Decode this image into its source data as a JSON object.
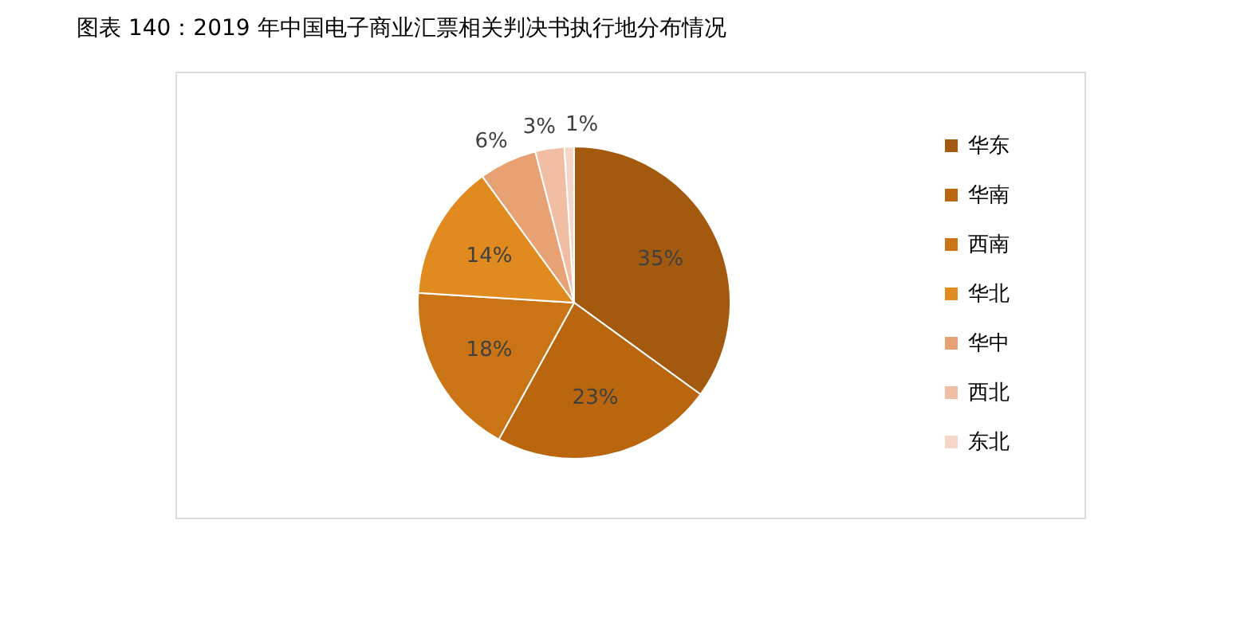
{
  "chart_data": {
    "type": "pie",
    "title": "图表 140：2019 年中国电子商业汇票相关判决书执行地分布情况",
    "categories": [
      "华东",
      "华南",
      "西南",
      "华北",
      "华中",
      "西北",
      "东北"
    ],
    "values": [
      35,
      23,
      18,
      14,
      6,
      3,
      1
    ],
    "colors": [
      "#a35a0f",
      "#b9660f",
      "#cb7415",
      "#e08a1f",
      "#e8a173",
      "#f1bea3",
      "#f5d6c8"
    ],
    "value_labels": [
      "35%",
      "23%",
      "18%",
      "14%",
      "6%",
      "3%",
      "1%"
    ],
    "legend": "right"
  }
}
